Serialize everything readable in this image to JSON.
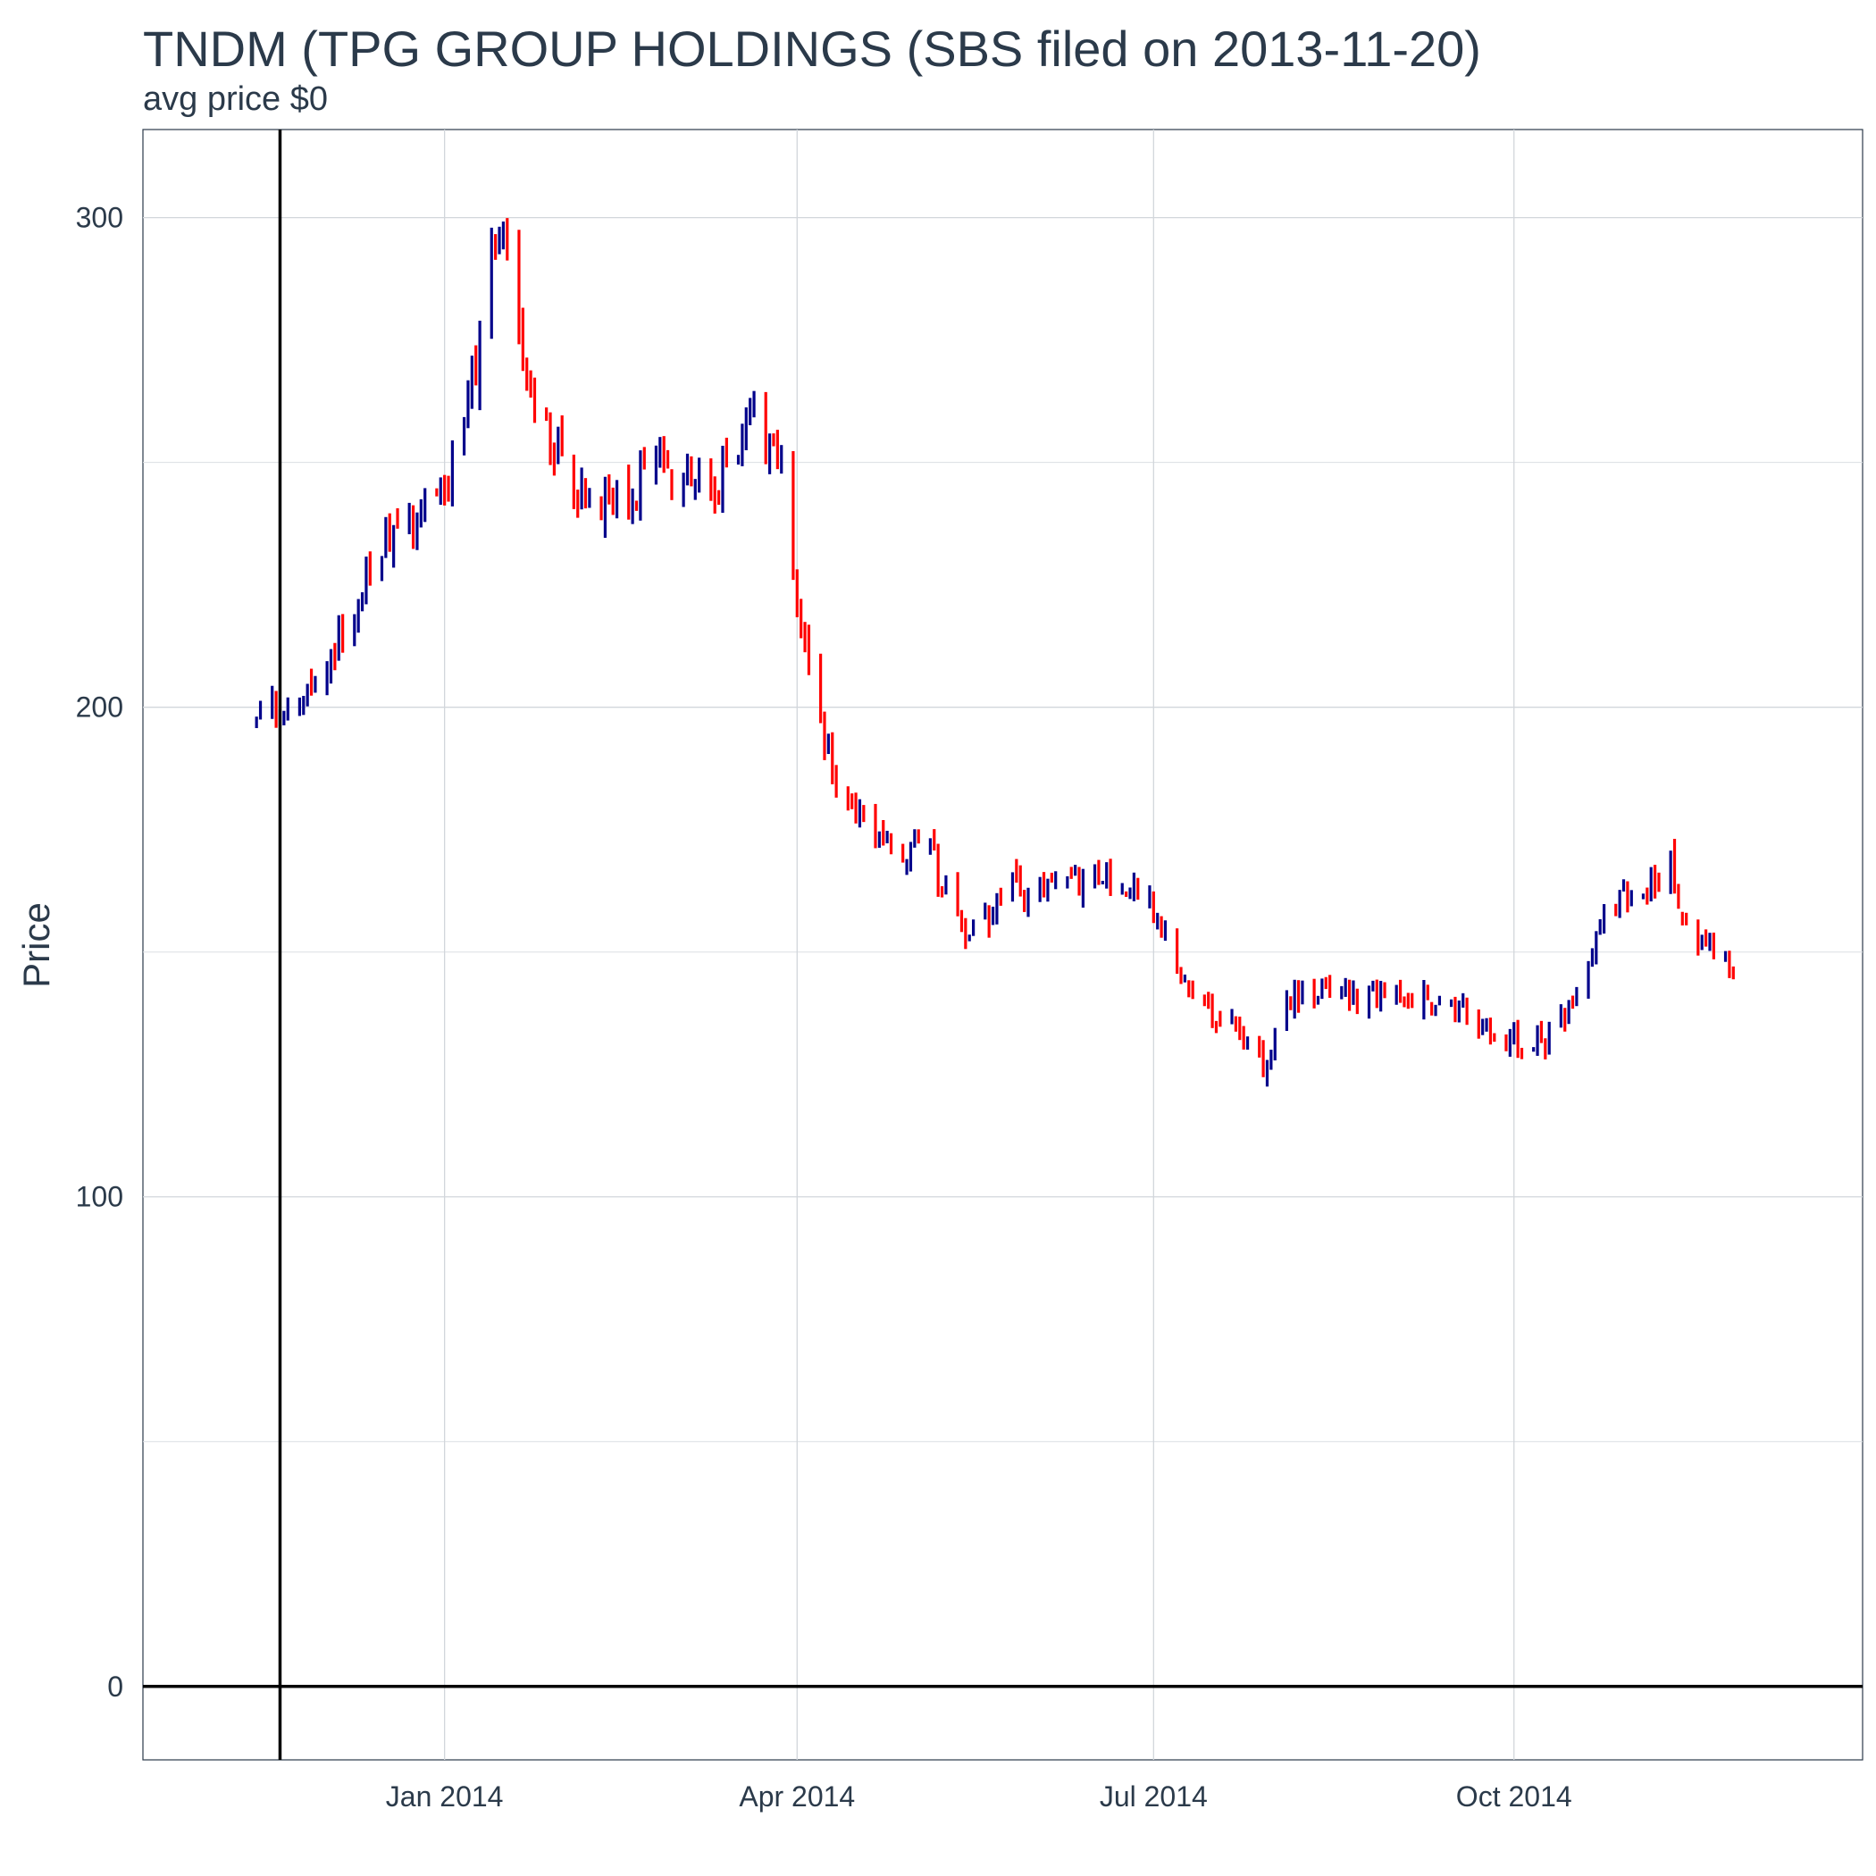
{
  "chart_data": {
    "type": "candlestick-bars",
    "title": "TNDM (TPG GROUP HOLDINGS (SBS filed on 2013-11-20)",
    "subtitle": "avg price $0",
    "ylabel": "Price",
    "xlabel": "",
    "ylim": [
      -15,
      318
    ],
    "xlim": [
      "2013-10-16",
      "2014-12-29"
    ],
    "y_ticks": [
      0,
      100,
      200,
      300
    ],
    "x_ticks": [
      {
        "date": "2014-01-01",
        "label": "Jan 2014"
      },
      {
        "date": "2014-04-01",
        "label": "Apr 2014"
      },
      {
        "date": "2014-07-01",
        "label": "Jul 2014"
      },
      {
        "date": "2014-10-01",
        "label": "Oct 2014"
      }
    ],
    "reference_vline_date": "2013-11-20",
    "reference_hline_value": 0,
    "up_color": "#00008b",
    "down_color": "#ff0000",
    "anchors": [
      [
        "2013-11-14",
        196
      ],
      [
        "2013-11-25",
        204
      ],
      [
        "2013-12-05",
        214
      ],
      [
        "2013-12-15",
        232
      ],
      [
        "2013-12-24",
        238
      ],
      [
        "2014-01-05",
        252
      ],
      [
        "2014-01-13",
        290
      ],
      [
        "2014-01-17",
        297
      ],
      [
        "2014-01-23",
        265
      ],
      [
        "2014-02-02",
        246
      ],
      [
        "2014-02-12",
        240
      ],
      [
        "2014-02-24",
        248
      ],
      [
        "2014-03-10",
        244
      ],
      [
        "2014-03-20",
        260
      ],
      [
        "2014-03-28",
        248
      ],
      [
        "2014-04-02",
        215
      ],
      [
        "2014-04-10",
        187
      ],
      [
        "2014-04-20",
        172
      ],
      [
        "2014-05-05",
        170
      ],
      [
        "2014-05-15",
        152
      ],
      [
        "2014-05-25",
        164
      ],
      [
        "2014-06-05",
        162
      ],
      [
        "2014-06-15",
        167
      ],
      [
        "2014-06-30",
        163
      ],
      [
        "2014-07-08",
        143
      ],
      [
        "2014-07-20",
        136
      ],
      [
        "2014-07-30",
        126
      ],
      [
        "2014-08-02",
        141
      ],
      [
        "2014-08-20",
        141
      ],
      [
        "2014-09-10",
        141
      ],
      [
        "2014-09-25",
        134
      ],
      [
        "2014-10-08",
        131
      ],
      [
        "2014-10-16",
        140
      ],
      [
        "2014-10-24",
        158
      ],
      [
        "2014-11-02",
        162
      ],
      [
        "2014-11-10",
        168
      ],
      [
        "2014-11-15",
        152
      ],
      [
        "2014-11-26",
        147
      ]
    ]
  }
}
